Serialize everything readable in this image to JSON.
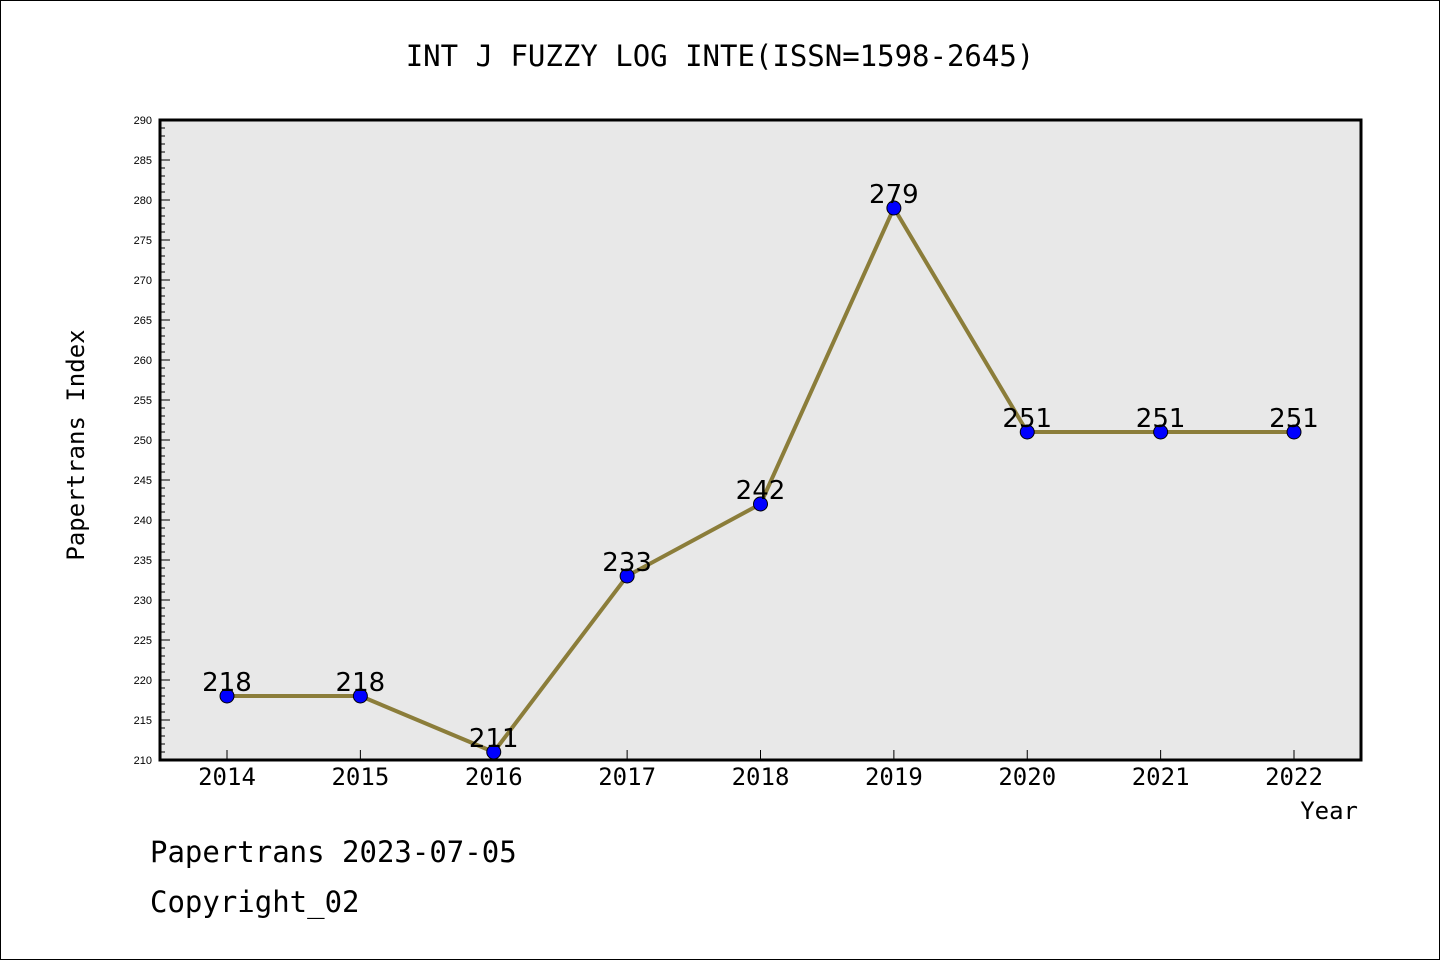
{
  "chart_data": {
    "type": "line",
    "title": "INT J FUZZY LOG INTE(ISSN=1598-2645)",
    "xlabel": "Year",
    "ylabel": "Papertrans Index",
    "categories": [
      "2014",
      "2015",
      "2016",
      "2017",
      "2018",
      "2019",
      "2020",
      "2021",
      "2022"
    ],
    "series": [
      {
        "values": [
          218,
          218,
          211,
          233,
          242,
          279,
          251,
          251,
          251
        ]
      }
    ],
    "data_labels": [
      "218",
      "218",
      "211",
      "233",
      "242",
      "279",
      "251",
      "251",
      "251"
    ],
    "ylim": [
      210,
      290
    ],
    "yticks": [
      "210",
      "215",
      "220",
      "225",
      "230",
      "235",
      "240",
      "245",
      "250",
      "255",
      "260",
      "265",
      "270",
      "275",
      "280",
      "285",
      "290"
    ],
    "grid": false,
    "colors": {
      "line": "#8b7d3a",
      "marker": "#0000ff",
      "plot_bg": "#e8e8e8"
    }
  },
  "footer": {
    "line1": "Papertrans 2023-07-05",
    "line2": "Copyright_02"
  }
}
